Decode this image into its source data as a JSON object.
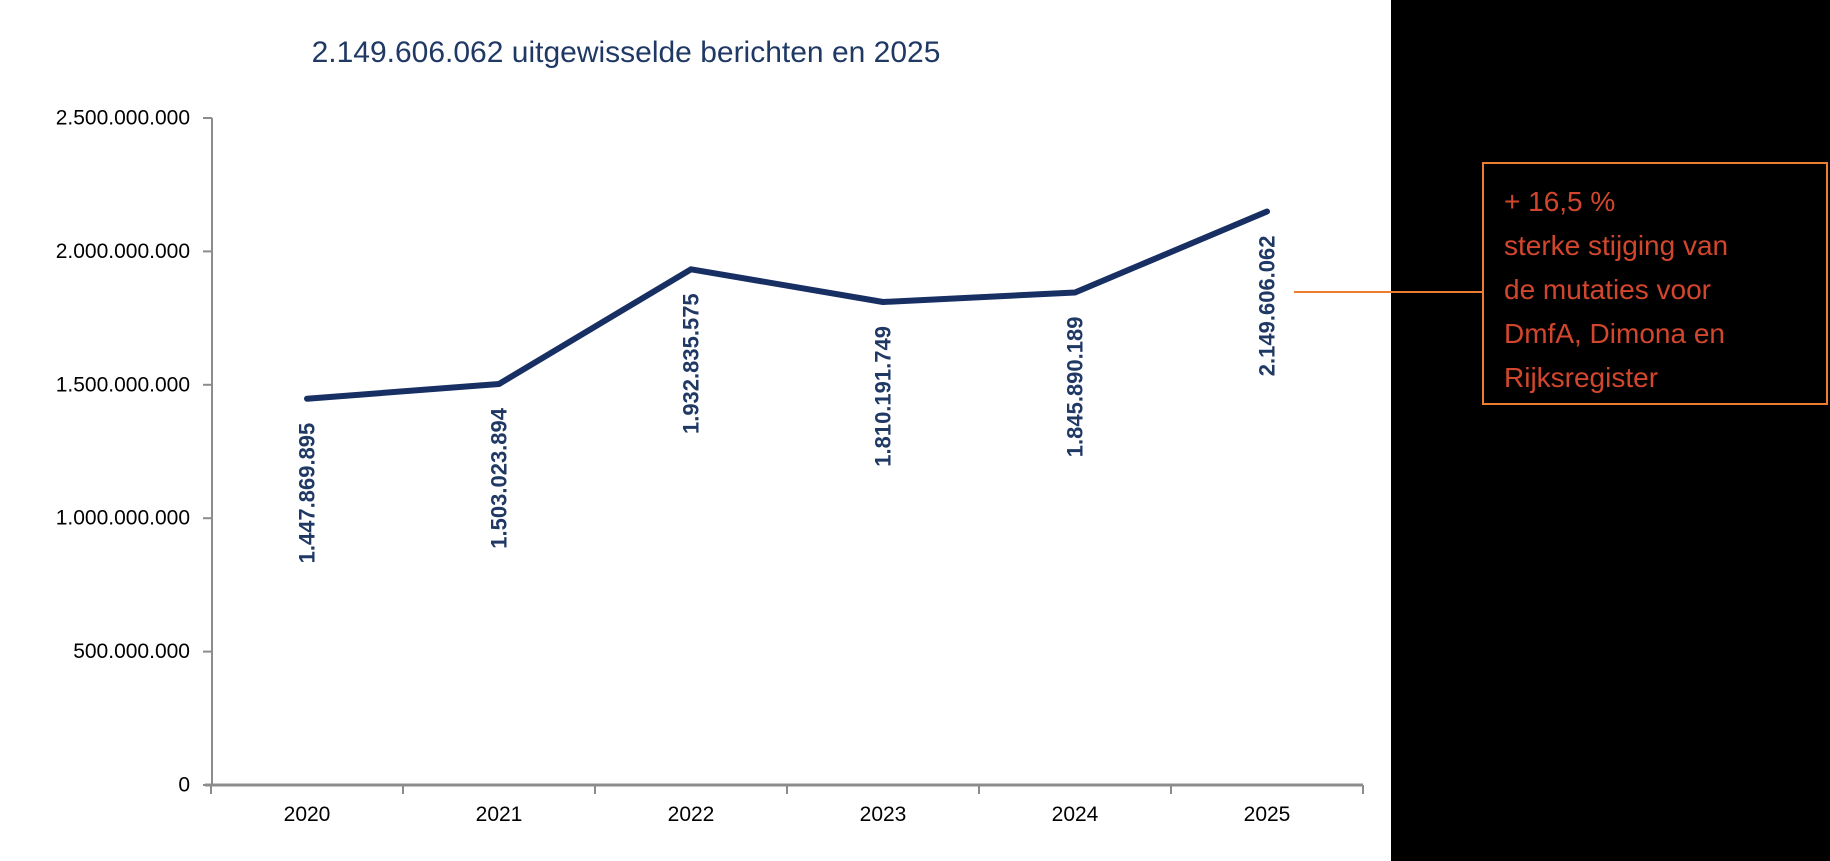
{
  "title": "2.149.606.062 uitgewisselde berichten en 2025",
  "colors": {
    "title_text": "#1F3864",
    "line": "#172F63",
    "data_label_text": "#1F3864",
    "axis": "#8C8C8C",
    "axis_tick_text": "#000000",
    "panel_background": "#000000",
    "annotation_text": "#D2462E",
    "annotation_border": "#ED7D31",
    "connector": "#ED7D31"
  },
  "chart_data": {
    "type": "line",
    "title": "2.149.606.062 uitgewisselde berichten en 2025",
    "categories": [
      "2020",
      "2021",
      "2022",
      "2023",
      "2024",
      "2025"
    ],
    "values": [
      1447869895,
      1503023894,
      1932835575,
      1810191749,
      1845890189,
      2149606062
    ],
    "data_labels": [
      "1.447.869.895",
      "1.503.023.894",
      "1.932.835.575",
      "1.810.191.749",
      "1.845.890.189",
      "2.149.606.062"
    ],
    "series_name": "uitgewisselde berichten",
    "xlabel": "",
    "ylabel": "",
    "ylim": [
      0,
      2500000000
    ],
    "y_tick_values": [
      0,
      500000000,
      1000000000,
      1500000000,
      2000000000,
      2500000000
    ],
    "y_tick_labels": [
      "0",
      "500.000.000",
      "1.000.000.000",
      "1.500.000.000",
      "2.000.000.000",
      "2.500.000.000"
    ],
    "grid": false,
    "legend": false,
    "data_label_rotation": -90
  },
  "annotation": {
    "lines": [
      "+ 16,5 %",
      "sterke stijging van",
      "de mutaties voor",
      "DmfA, Dimona en",
      "Rijksregister"
    ]
  }
}
